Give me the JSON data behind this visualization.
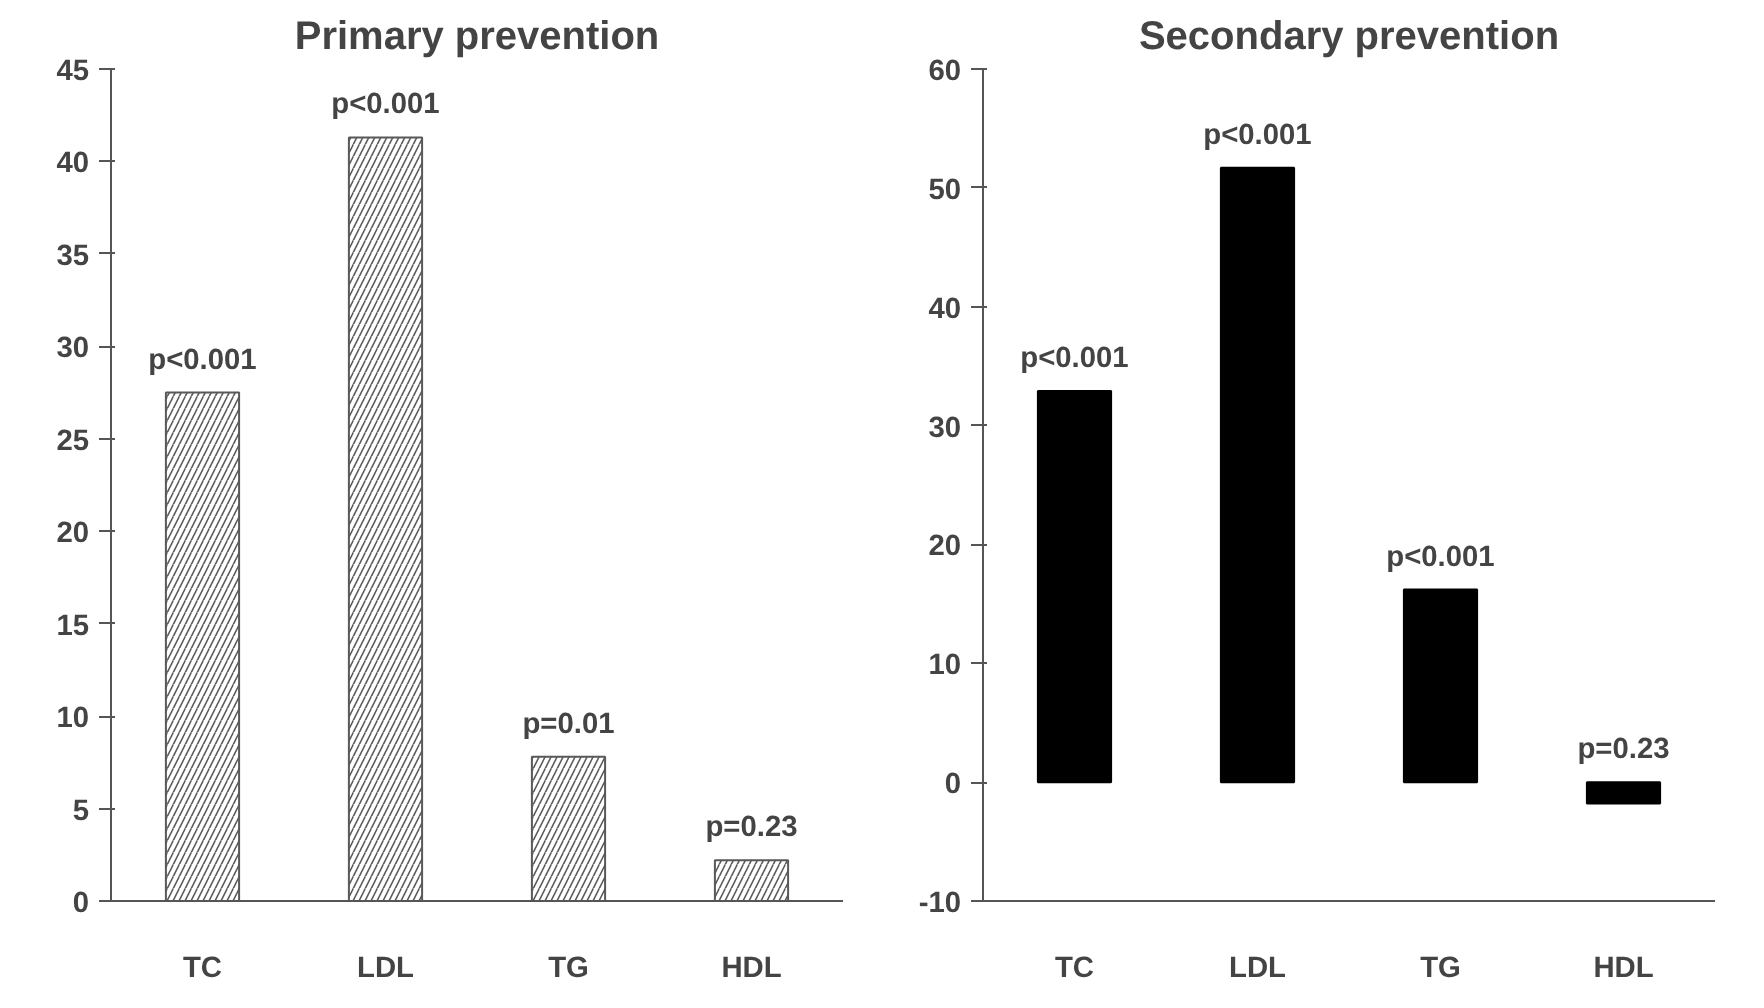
{
  "chart_data": [
    {
      "type": "bar",
      "title": "Primary prevention",
      "categories": [
        "TC",
        "LDL",
        "TG",
        "HDL"
      ],
      "values": [
        27.5,
        41.3,
        7.8,
        2.2
      ],
      "color": "#595959",
      "ylim": [
        0,
        45
      ],
      "yticks": [
        0,
        5,
        10,
        15,
        20,
        25,
        30,
        35,
        40,
        45
      ],
      "grid": false,
      "annotations": [
        {
          "text": "p<0.001",
          "x": "TC",
          "y": 27.5
        },
        {
          "text": "p<0.001",
          "x": "LDL",
          "y": 41.3
        },
        {
          "text": "p=0.01",
          "x": "TG",
          "y": 7.8
        },
        {
          "text": "p=0.23",
          "x": "HDL",
          "y": 2.2
        }
      ]
    },
    {
      "type": "bar",
      "title": "Secondary prevention",
      "categories": [
        "TC",
        "LDL",
        "TG",
        "HDL"
      ],
      "values": [
        32.9,
        51.7,
        16.2,
        -1.8
      ],
      "color": "#000000",
      "ylim": [
        -10,
        60
      ],
      "yticks": [
        -10,
        0,
        10,
        20,
        30,
        40,
        50,
        60
      ],
      "grid": false,
      "annotations": [
        {
          "text": "p<0.001",
          "x": "TC",
          "y": 32.9
        },
        {
          "text": "p<0.001",
          "x": "LDL",
          "y": 51.7
        },
        {
          "text": "p<0.001",
          "x": "TG",
          "y": 16.2
        },
        {
          "text": "p=0.23",
          "x": "HDL",
          "y": 0
        }
      ]
    }
  ]
}
